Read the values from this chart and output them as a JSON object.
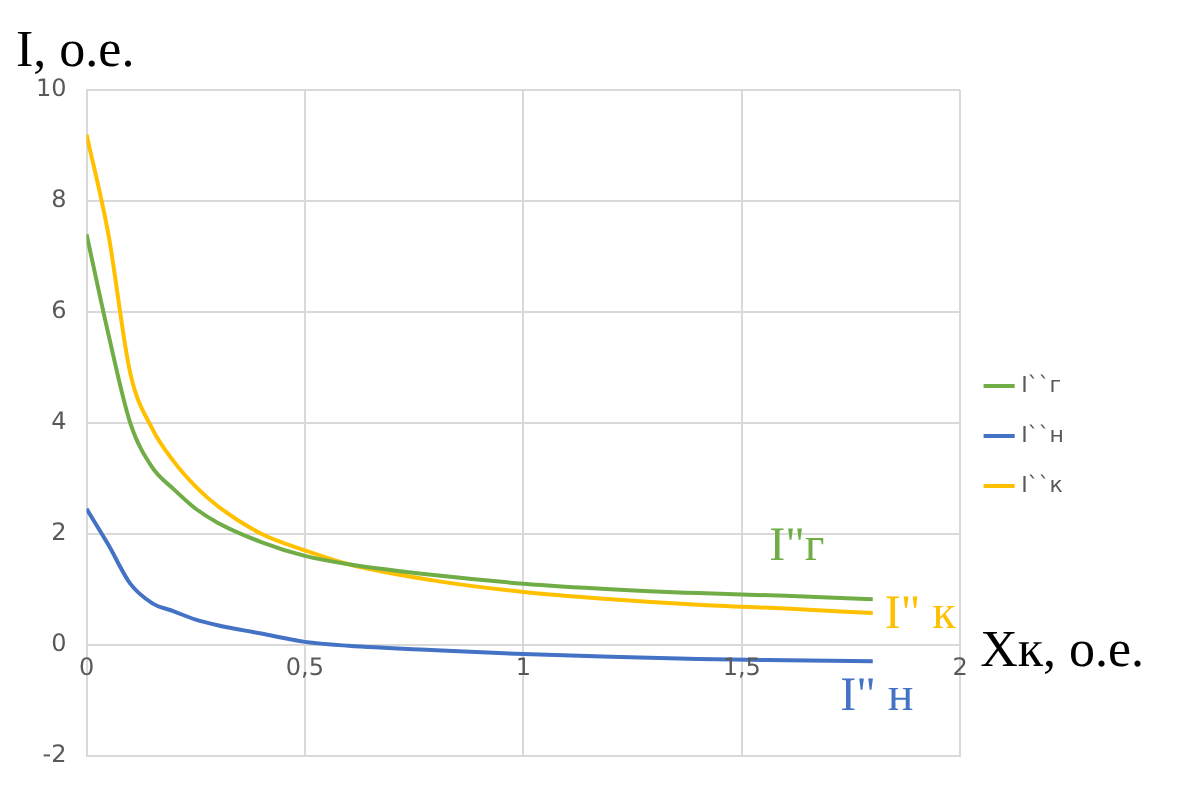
{
  "chart_data": {
    "type": "line",
    "xlabel": "Xк, о.е.",
    "ylabel": "I, о.е.",
    "x": [
      0,
      0.05,
      0.1,
      0.15,
      0.2,
      0.25,
      0.3,
      0.4,
      0.5,
      0.6,
      0.8,
      1.0,
      1.2,
      1.4,
      1.6,
      1.8
    ],
    "series": [
      {
        "name": "I``г",
        "color": "#70ad47",
        "values": [
          7.4,
          5.6,
          4.0,
          3.2,
          2.8,
          2.45,
          2.2,
          1.85,
          1.6,
          1.45,
          1.25,
          1.1,
          1.0,
          0.93,
          0.88,
          0.82
        ]
      },
      {
        "name": "I``н",
        "color": "#4472c4",
        "values": [
          2.45,
          1.8,
          1.1,
          0.75,
          0.6,
          0.45,
          0.35,
          0.2,
          0.05,
          -0.02,
          -0.1,
          -0.17,
          -0.22,
          -0.26,
          -0.28,
          -0.3
        ]
      },
      {
        "name": "I``к",
        "color": "#ffc000",
        "values": [
          9.2,
          7.4,
          4.9,
          3.9,
          3.3,
          2.85,
          2.5,
          2.0,
          1.7,
          1.45,
          1.15,
          0.95,
          0.82,
          0.72,
          0.65,
          0.57
        ]
      }
    ],
    "annotations": [
      "I\"г",
      "I\" н",
      "I\" к"
    ],
    "xlim": [
      0,
      2
    ],
    "xticks": [
      0,
      {
        "value": 0.5,
        "label": "0,5"
      },
      1,
      {
        "value": 1.5,
        "label": "1,5"
      },
      2
    ],
    "ylim": [
      -2,
      10
    ],
    "yticks": [
      -2,
      0,
      2,
      4,
      6,
      8,
      10
    ],
    "grid": true,
    "legend": "right",
    "line_style": "solid"
  }
}
